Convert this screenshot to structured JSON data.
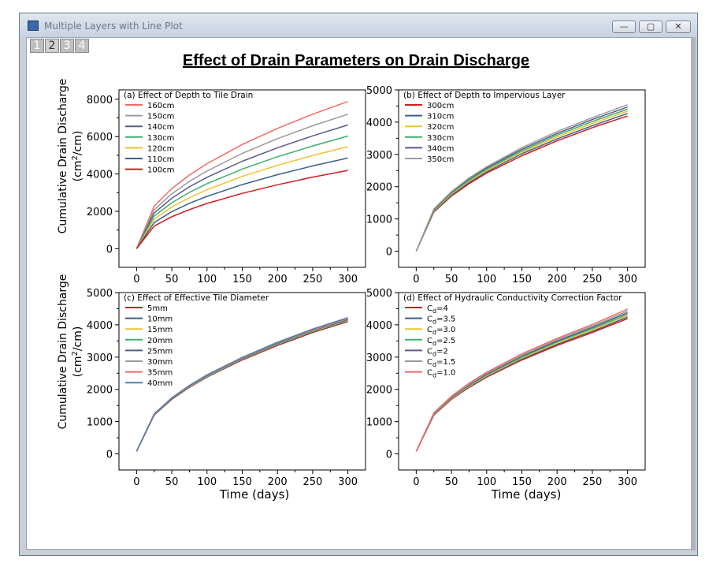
{
  "window": {
    "title": "Multiple Layers with Line Plot",
    "minimize_label": "—",
    "maximize_label": "▢",
    "close_label": "✕",
    "layer_tabs": [
      "1",
      "2",
      "3",
      "4"
    ],
    "active_layer": 1
  },
  "main_title": "Effect of Drain Parameters on Drain Discharge",
  "shared_labels": {
    "ylabel_line1": "Cumulative Drain Discharge",
    "ylabel_line2_pre": "(cm",
    "ylabel_line2_sup": "2",
    "ylabel_line2_post": "/cm)",
    "xlabel": "Time (days)"
  },
  "chart_data": [
    {
      "type": "line",
      "title": "(a) Effect of Depth to Tile Drain",
      "xlim": [
        -25,
        325
      ],
      "ylim": [
        -1000,
        8500
      ],
      "xticks": [
        0,
        50,
        100,
        150,
        200,
        250,
        300
      ],
      "yticks": [
        0,
        2000,
        4000,
        6000,
        8000
      ],
      "x": [
        0,
        25,
        50,
        75,
        100,
        150,
        200,
        250,
        300
      ],
      "legend": "top-left",
      "series": [
        {
          "name": "160cm",
          "color": "#f06a6a",
          "values": [
            0,
            2280,
            3220,
            3940,
            4550,
            5580,
            6440,
            7200,
            7880
          ]
        },
        {
          "name": "150cm",
          "color": "#9c9c9c",
          "values": [
            0,
            2080,
            2940,
            3600,
            4160,
            5100,
            5890,
            6580,
            7200
          ]
        },
        {
          "name": "140cm",
          "color": "#565c8a",
          "values": [
            0,
            1910,
            2700,
            3310,
            3820,
            4680,
            5400,
            6040,
            6620
          ]
        },
        {
          "name": "130cm",
          "color": "#3fb06e",
          "values": [
            0,
            1740,
            2460,
            3010,
            3480,
            4260,
            4920,
            5500,
            6030
          ]
        },
        {
          "name": "120cm",
          "color": "#f2c22e",
          "values": [
            0,
            1580,
            2230,
            2730,
            3160,
            3870,
            4460,
            4990,
            5460
          ]
        },
        {
          "name": "110cm",
          "color": "#3a5f8e",
          "values": [
            0,
            1400,
            1980,
            2430,
            2800,
            3430,
            3960,
            4430,
            4850
          ]
        },
        {
          "name": "100cm",
          "color": "#d11d1d",
          "values": [
            0,
            1210,
            1710,
            2090,
            2420,
            2960,
            3420,
            3830,
            4190
          ]
        }
      ]
    },
    {
      "type": "line",
      "title": "(b) Effect of Depth to Impervious Layer",
      "xlim": [
        -25,
        325
      ],
      "ylim": [
        -500,
        5000
      ],
      "xticks": [
        0,
        50,
        100,
        150,
        200,
        250,
        300
      ],
      "yticks": [
        0,
        1000,
        2000,
        3000,
        4000,
        5000
      ],
      "x": [
        0,
        25,
        50,
        75,
        100,
        150,
        200,
        250,
        300
      ],
      "legend": "top-left",
      "series": [
        {
          "name": "300cm",
          "color": "#d11d1d",
          "values": [
            0,
            1210,
            1710,
            2090,
            2420,
            2960,
            3420,
            3830,
            4190
          ]
        },
        {
          "name": "310cm",
          "color": "#3a5f8e",
          "values": [
            0,
            1230,
            1740,
            2130,
            2460,
            3020,
            3480,
            3890,
            4270
          ]
        },
        {
          "name": "320cm",
          "color": "#f2c22e",
          "values": [
            0,
            1250,
            1770,
            2170,
            2500,
            3070,
            3540,
            3960,
            4340
          ]
        },
        {
          "name": "330cm",
          "color": "#3fb06e",
          "values": [
            0,
            1270,
            1800,
            2200,
            2540,
            3110,
            3600,
            4020,
            4400
          ]
        },
        {
          "name": "340cm",
          "color": "#565c8a",
          "values": [
            0,
            1290,
            1830,
            2240,
            2580,
            3160,
            3650,
            4080,
            4470
          ]
        },
        {
          "name": "350cm",
          "color": "#9c9c9c",
          "values": [
            0,
            1310,
            1850,
            2270,
            2620,
            3210,
            3710,
            4140,
            4540
          ]
        }
      ]
    },
    {
      "type": "line",
      "title": "(c) Effect of Effective Tile Diameter",
      "xlim": [
        -25,
        325
      ],
      "ylim": [
        -500,
        5000
      ],
      "xticks": [
        0,
        50,
        100,
        150,
        200,
        250,
        300
      ],
      "yticks": [
        0,
        1000,
        2000,
        3000,
        4000,
        5000
      ],
      "x": [
        0,
        25,
        50,
        75,
        100,
        150,
        200,
        250,
        300
      ],
      "legend": "top-left",
      "series": [
        {
          "name": "5mm",
          "color": "#d11d1d",
          "values": [
            80,
            1200,
            1690,
            2060,
            2380,
            2910,
            3360,
            3760,
            4100
          ]
        },
        {
          "name": "10mm",
          "color": "#3a5f8e",
          "values": [
            80,
            1210,
            1700,
            2070,
            2390,
            2930,
            3380,
            3780,
            4120
          ]
        },
        {
          "name": "15mm",
          "color": "#f2c22e",
          "values": [
            80,
            1210,
            1710,
            2080,
            2400,
            2940,
            3400,
            3800,
            4140
          ]
        },
        {
          "name": "20mm",
          "color": "#3fb06e",
          "values": [
            80,
            1220,
            1710,
            2090,
            2410,
            2950,
            3410,
            3810,
            4160
          ]
        },
        {
          "name": "25mm",
          "color": "#565c8a",
          "values": [
            80,
            1220,
            1720,
            2100,
            2420,
            2960,
            3420,
            3830,
            4170
          ]
        },
        {
          "name": "30mm",
          "color": "#9c9c9c",
          "values": [
            80,
            1230,
            1730,
            2110,
            2430,
            2970,
            3440,
            3840,
            4190
          ]
        },
        {
          "name": "35mm",
          "color": "#f06a6a",
          "values": [
            80,
            1230,
            1730,
            2110,
            2440,
            2980,
            3450,
            3850,
            4200
          ]
        },
        {
          "name": "40mm",
          "color": "#4f7fb0",
          "values": [
            80,
            1240,
            1740,
            2120,
            2450,
            2990,
            3460,
            3870,
            4220
          ]
        }
      ]
    },
    {
      "type": "line",
      "title": "(d) Effect of Hydraulic Conductivity Correction Factor",
      "xlim": [
        -25,
        325
      ],
      "ylim": [
        -500,
        5000
      ],
      "xticks": [
        0,
        50,
        100,
        150,
        200,
        250,
        300
      ],
      "yticks": [
        0,
        1000,
        2000,
        3000,
        4000,
        5000
      ],
      "x": [
        0,
        25,
        50,
        75,
        100,
        150,
        200,
        250,
        300
      ],
      "legend": "top-left",
      "series": [
        {
          "name": "Cd=4",
          "label_base": "C",
          "label_sub": "d",
          "label_rest": "=4",
          "color": "#d11d1d",
          "values": [
            80,
            1200,
            1690,
            2060,
            2380,
            2910,
            3360,
            3760,
            4190
          ]
        },
        {
          "name": "Cd=3.5",
          "label_base": "C",
          "label_sub": "d",
          "label_rest": "=3.5",
          "color": "#3a5f8e",
          "values": [
            80,
            1210,
            1710,
            2080,
            2400,
            2940,
            3400,
            3800,
            4240
          ]
        },
        {
          "name": "Cd=3.0",
          "label_base": "C",
          "label_sub": "d",
          "label_rest": "=3.0",
          "color": "#f2c22e",
          "values": [
            80,
            1220,
            1720,
            2100,
            2420,
            2970,
            3430,
            3840,
            4290
          ]
        },
        {
          "name": "Cd=2.5",
          "label_base": "C",
          "label_sub": "d",
          "label_rest": "=2.5",
          "color": "#3fb06e",
          "values": [
            80,
            1230,
            1740,
            2120,
            2450,
            3000,
            3470,
            3880,
            4330
          ]
        },
        {
          "name": "Cd=2",
          "label_base": "C",
          "label_sub": "d",
          "label_rest": "=2",
          "color": "#565c8a",
          "values": [
            80,
            1240,
            1750,
            2140,
            2470,
            3030,
            3500,
            3920,
            4380
          ]
        },
        {
          "name": "Cd=1.5",
          "label_base": "C",
          "label_sub": "d",
          "label_rest": "=1.5",
          "color": "#9c9c9c",
          "values": [
            80,
            1250,
            1770,
            2160,
            2500,
            3060,
            3540,
            3960,
            4430
          ]
        },
        {
          "name": "Cd=1.0",
          "label_base": "C",
          "label_sub": "d",
          "label_rest": "=1.0",
          "color": "#f06a6a",
          "values": [
            80,
            1270,
            1790,
            2190,
            2530,
            3100,
            3580,
            4010,
            4490
          ]
        }
      ]
    }
  ]
}
